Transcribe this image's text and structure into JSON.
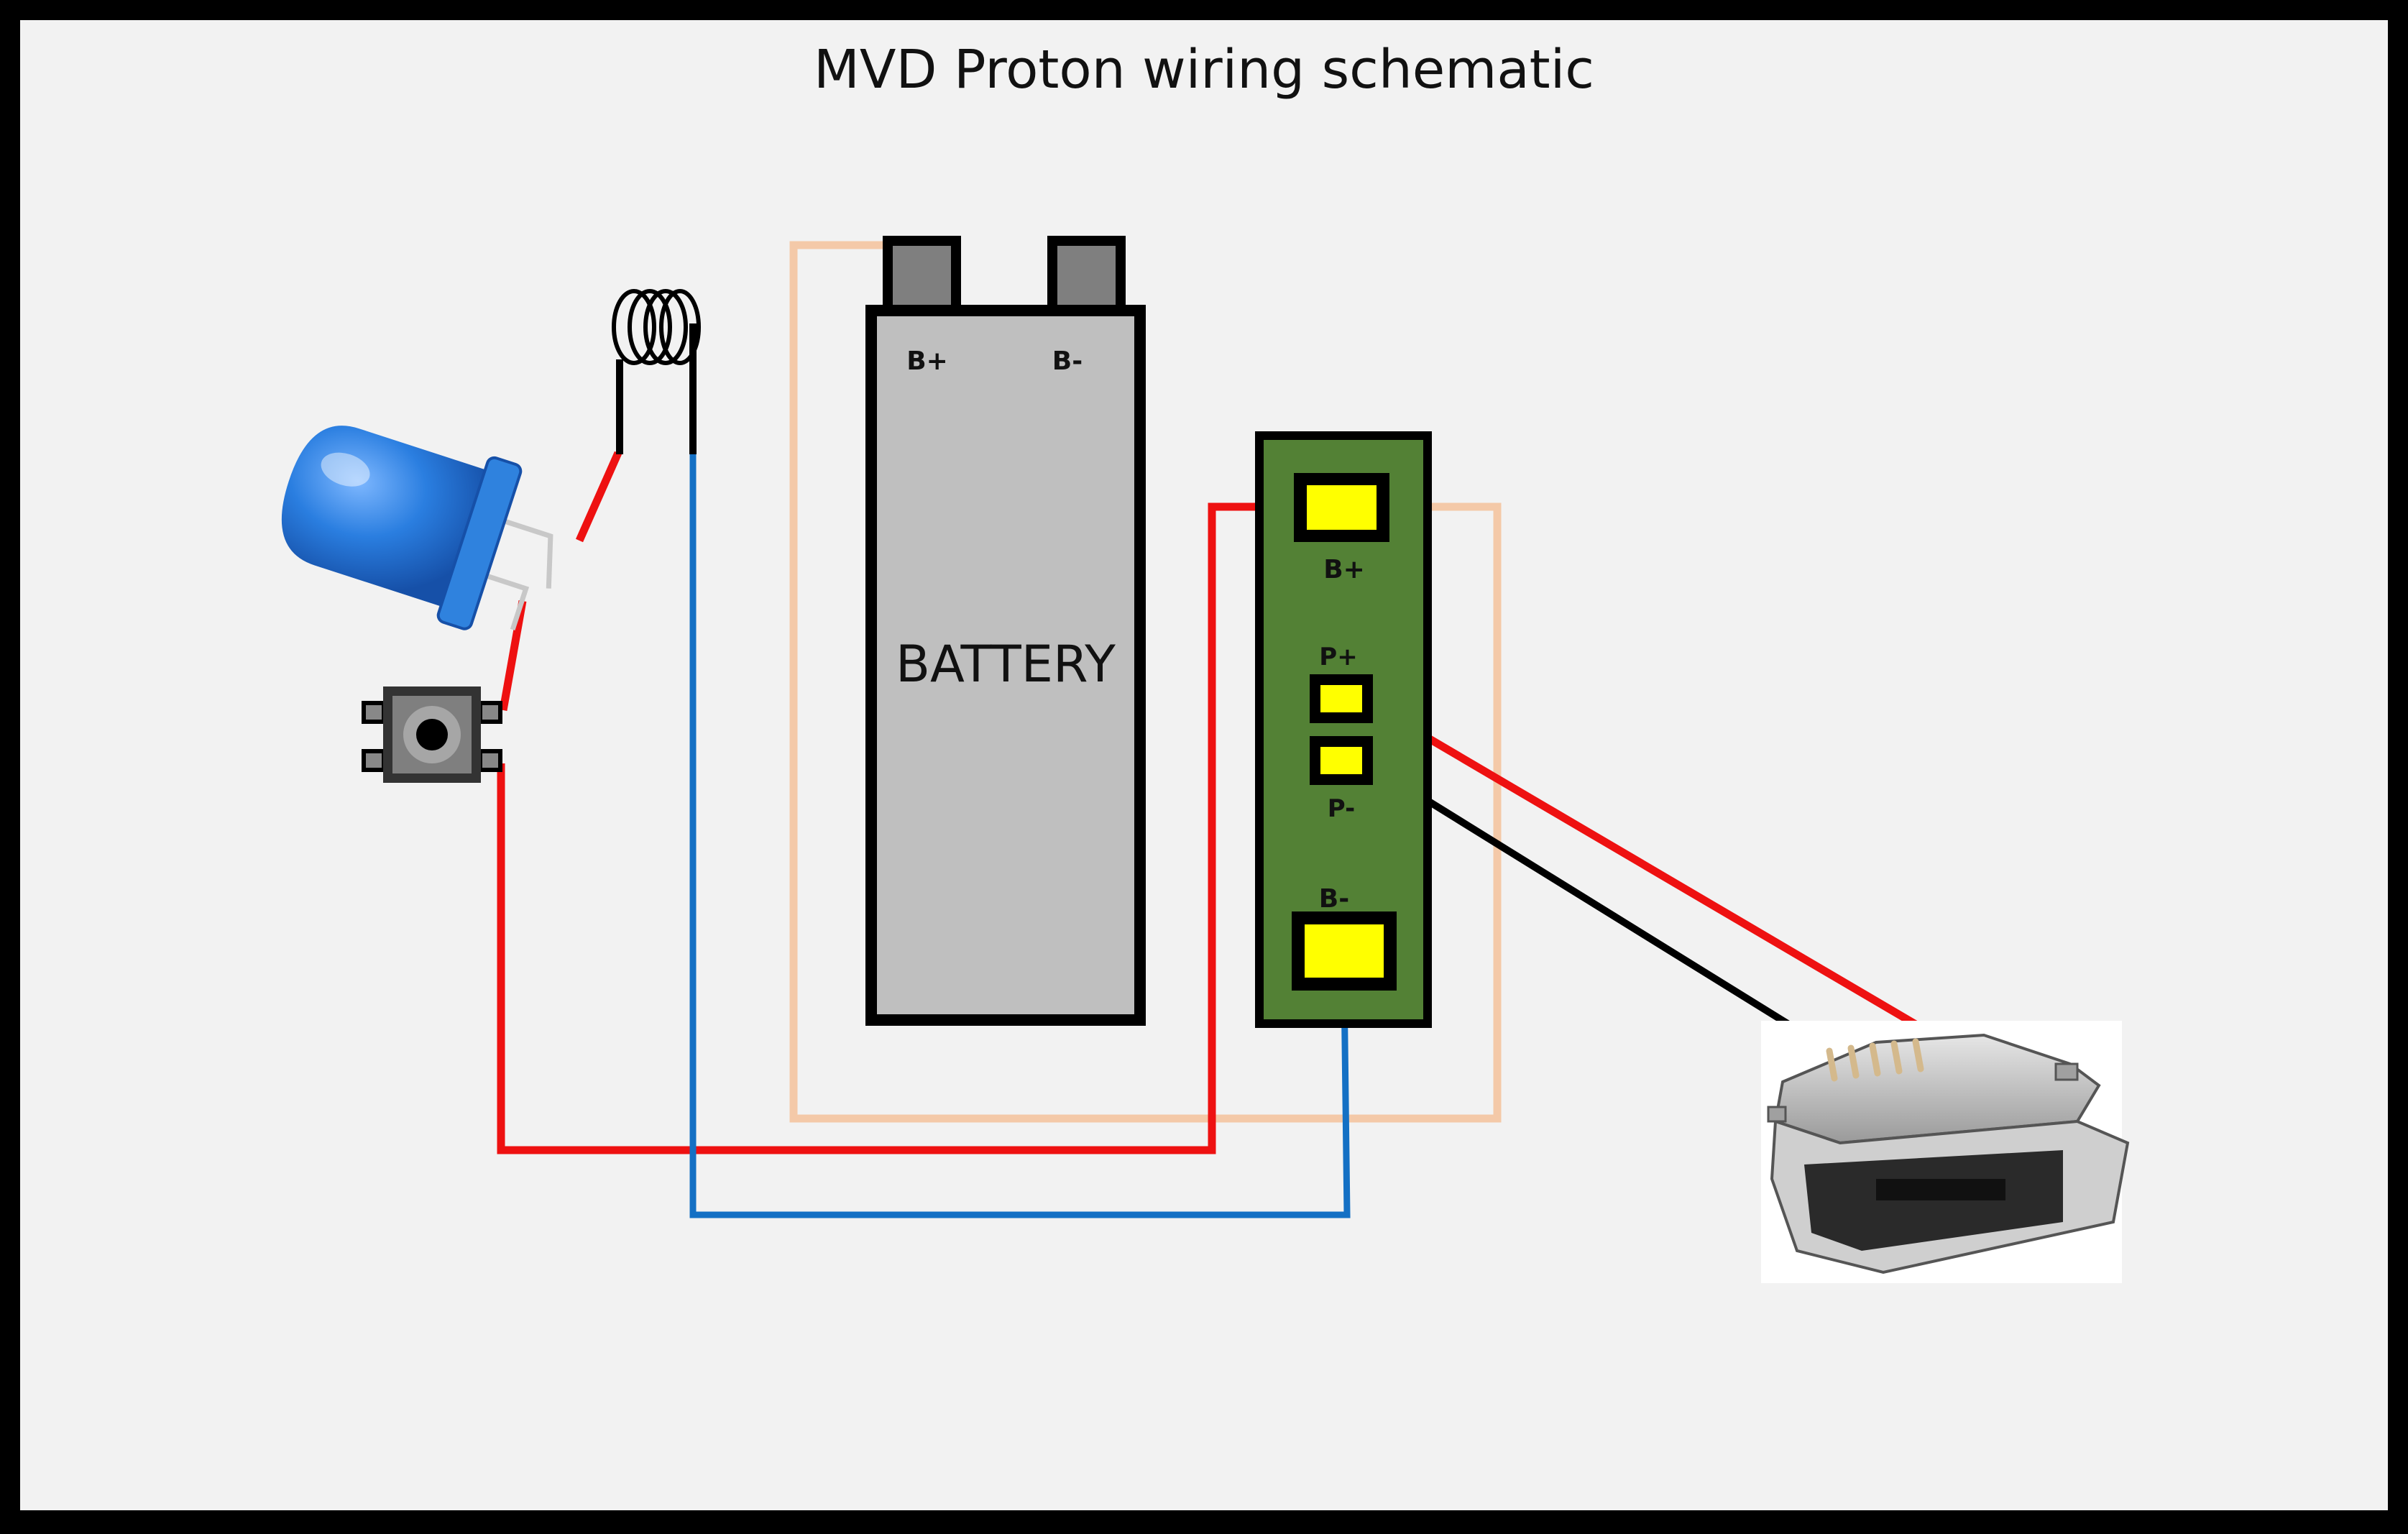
{
  "title": "MVD Proton wiring schematic",
  "battery": {
    "label": "BATTERY",
    "positive_label": "B+",
    "negative_label": "B-"
  },
  "charger_board": {
    "battery_positive_label": "B+",
    "input_positive_label": "P+",
    "input_negative_label": "P-",
    "battery_negative_label": "B-"
  },
  "colors": {
    "frame": "#000000",
    "background": "#f2f2f2",
    "wire_red": "#ee1111",
    "wire_blue": "#1470c4",
    "wire_peach": "#f4c9a8",
    "wire_black": "#000000",
    "board": "#538135",
    "pad": "#ffff00",
    "battery_body": "#bfbfbf",
    "battery_tab": "#7f7f7f",
    "led": "#1f6fd1"
  },
  "icons": {
    "led": "led-icon",
    "coil": "coil-icon",
    "switch": "push-button-icon",
    "usb": "micro-usb-connector-icon"
  }
}
